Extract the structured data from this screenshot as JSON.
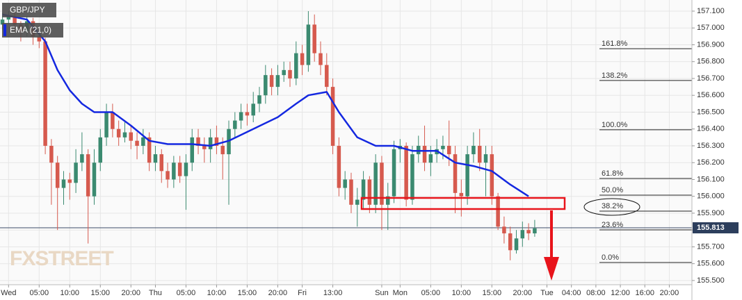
{
  "chart_data": {
    "type": "candlestick",
    "symbol": "GBP/JPY",
    "watermark": "FXSTREET",
    "grid": true,
    "xlim": [
      -1.4,
      111.7
    ],
    "ylim": [
      155.475,
      157.166
    ],
    "xticks": [
      {
        "value": 0,
        "label": "Wed"
      },
      {
        "value": 5,
        "label": "05:00"
      },
      {
        "value": 10,
        "label": "10:00"
      },
      {
        "value": 15,
        "label": "15:00"
      },
      {
        "value": 20,
        "label": "20:00"
      },
      {
        "value": 24,
        "label": "Thu"
      },
      {
        "value": 29,
        "label": "05:00"
      },
      {
        "value": 34,
        "label": "10:00"
      },
      {
        "value": 39,
        "label": "15:00"
      },
      {
        "value": 44,
        "label": "20:00"
      },
      {
        "value": 48,
        "label": "Fri"
      },
      {
        "value": 53,
        "label": "13:00"
      },
      {
        "value": 61,
        "label": "Sun"
      },
      {
        "value": 64,
        "label": "Mon"
      },
      {
        "value": 69,
        "label": "05:00"
      },
      {
        "value": 74,
        "label": "10:00"
      },
      {
        "value": 79,
        "label": "15:00"
      },
      {
        "value": 84,
        "label": "20:00"
      },
      {
        "value": 88,
        "label": "Tue"
      },
      {
        "value": 92,
        "label": "04:00"
      },
      {
        "value": 96,
        "label": "08:00"
      },
      {
        "value": 100,
        "label": "12:00"
      },
      {
        "value": 104,
        "label": "16:00"
      },
      {
        "value": 108,
        "label": "20:00"
      }
    ],
    "yticks": [
      {
        "value": 157.1,
        "label": "157.100"
      },
      {
        "value": 157.0,
        "label": "157.000"
      },
      {
        "value": 156.9,
        "label": "156.900"
      },
      {
        "value": 156.8,
        "label": "156.800"
      },
      {
        "value": 156.7,
        "label": "156.700"
      },
      {
        "value": 156.6,
        "label": "156.600"
      },
      {
        "value": 156.5,
        "label": "156.500"
      },
      {
        "value": 156.4,
        "label": "156.400"
      },
      {
        "value": 156.3,
        "label": "156.300"
      },
      {
        "value": 156.2,
        "label": "156.200"
      },
      {
        "value": 156.1,
        "label": "156.100"
      },
      {
        "value": 156.0,
        "label": "156.000"
      },
      {
        "value": 155.9,
        "label": "155.900"
      },
      {
        "value": 155.8,
        "label": "155.800"
      },
      {
        "value": 155.7,
        "label": "155.700"
      },
      {
        "value": 155.6,
        "label": "155.600"
      },
      {
        "value": 155.5,
        "label": "155.500"
      }
    ],
    "last_price": {
      "value": 155.813,
      "label": "155.813"
    },
    "candles": {
      "up_color": "#3b8a70",
      "down_color": "#d65a4e",
      "x": [
        -1,
        0,
        1,
        2,
        3,
        4,
        5,
        6,
        7,
        8,
        9,
        10,
        11,
        12,
        13,
        14,
        15,
        16,
        17,
        18,
        19,
        20,
        21,
        22,
        23,
        24,
        25,
        26,
        27,
        28,
        29,
        30,
        31,
        32,
        33,
        34,
        35,
        36,
        37,
        38,
        39,
        40,
        41,
        42,
        43,
        44,
        45,
        46,
        47,
        48,
        49,
        50,
        51,
        52,
        53,
        54,
        55,
        56,
        57,
        58,
        59,
        60,
        61,
        62,
        63,
        64,
        65,
        66,
        67,
        68,
        69,
        70,
        71,
        72,
        73,
        74,
        75,
        76,
        77,
        78,
        79,
        80,
        81,
        82,
        83,
        84,
        85,
        86
      ],
      "open": [
        157.02,
        157.05,
        157.07,
        157.02,
        156.98,
        157.04,
        156.95,
        156.92,
        156.3,
        156.2,
        156.05,
        156.1,
        156.08,
        156.2,
        156.25,
        156.0,
        156.2,
        156.35,
        156.5,
        156.4,
        156.35,
        156.38,
        156.33,
        156.3,
        156.35,
        156.2,
        156.25,
        156.15,
        156.1,
        156.2,
        156.12,
        156.2,
        156.35,
        156.3,
        156.28,
        156.35,
        156.3,
        156.25,
        156.4,
        156.45,
        156.5,
        156.48,
        156.55,
        156.6,
        156.72,
        156.65,
        156.72,
        156.75,
        156.7,
        156.85,
        156.78,
        157.02,
        156.85,
        156.78,
        156.65,
        156.3,
        156.05,
        156.1,
        155.95,
        155.98,
        156.1,
        155.95,
        156.2,
        155.95,
        156.0,
        156.28,
        156.3,
        155.98,
        156.25,
        156.3,
        156.2,
        156.25,
        156.28,
        156.3,
        156.25,
        156.02,
        156.0,
        156.25,
        156.3,
        156.2,
        156.25,
        156.0,
        155.82,
        155.78,
        155.68,
        155.75,
        155.8,
        155.78
      ],
      "high": [
        157.09,
        157.1,
        157.09,
        157.04,
        157.07,
        157.06,
        156.99,
        156.94,
        156.34,
        156.24,
        156.15,
        156.14,
        156.28,
        156.38,
        156.28,
        156.28,
        156.4,
        156.55,
        156.55,
        156.45,
        156.44,
        156.42,
        156.38,
        156.4,
        156.38,
        156.3,
        156.28,
        156.2,
        156.24,
        156.24,
        156.25,
        156.4,
        156.4,
        156.35,
        156.4,
        156.42,
        156.35,
        156.45,
        156.5,
        156.55,
        156.55,
        156.62,
        156.65,
        156.78,
        156.76,
        156.78,
        156.8,
        156.8,
        156.92,
        156.9,
        157.1,
        157.08,
        156.92,
        156.85,
        156.7,
        156.35,
        156.15,
        156.14,
        156.05,
        156.15,
        156.12,
        156.25,
        156.24,
        156.08,
        156.33,
        156.34,
        156.32,
        156.3,
        156.36,
        156.42,
        156.3,
        156.34,
        156.36,
        156.45,
        156.3,
        156.1,
        156.3,
        156.38,
        156.4,
        156.3,
        156.3,
        156.02,
        155.88,
        155.82,
        155.8,
        155.85,
        155.84,
        155.86
      ],
      "low": [
        156.99,
        157.02,
        156.98,
        156.92,
        156.95,
        156.9,
        156.88,
        156.25,
        155.95,
        155.8,
        155.95,
        155.98,
        156.02,
        156.15,
        155.72,
        155.95,
        156.15,
        156.3,
        156.35,
        156.3,
        156.32,
        156.28,
        156.22,
        156.25,
        156.15,
        156.15,
        156.08,
        156.05,
        156.05,
        156.08,
        155.92,
        156.15,
        156.25,
        156.2,
        156.2,
        156.25,
        156.1,
        155.95,
        156.35,
        156.4,
        156.42,
        156.44,
        156.5,
        156.55,
        156.6,
        156.6,
        156.68,
        156.65,
        156.66,
        156.72,
        156.74,
        156.8,
        156.72,
        156.6,
        156.25,
        156.0,
        155.98,
        155.9,
        155.82,
        155.92,
        155.9,
        155.9,
        155.8,
        155.8,
        155.96,
        156.2,
        155.94,
        155.95,
        156.2,
        156.15,
        156.12,
        156.2,
        156.22,
        156.18,
        155.9,
        155.88,
        155.95,
        156.2,
        156.15,
        156.0,
        155.95,
        155.8,
        155.72,
        155.62,
        155.66,
        155.7,
        155.74,
        155.76
      ],
      "close": [
        157.05,
        157.07,
        157.02,
        156.98,
        157.04,
        156.95,
        156.92,
        156.3,
        156.2,
        156.05,
        156.1,
        156.08,
        156.2,
        156.25,
        156.0,
        156.2,
        156.35,
        156.5,
        156.4,
        156.35,
        156.38,
        156.33,
        156.3,
        156.35,
        156.2,
        156.25,
        156.15,
        156.1,
        156.2,
        156.12,
        156.2,
        156.35,
        156.3,
        156.28,
        156.35,
        156.3,
        156.25,
        156.4,
        156.45,
        156.5,
        156.48,
        156.55,
        156.6,
        156.72,
        156.65,
        156.72,
        156.75,
        156.7,
        156.85,
        156.78,
        157.02,
        156.85,
        156.78,
        156.65,
        156.3,
        156.05,
        156.1,
        155.95,
        155.98,
        156.1,
        155.95,
        156.2,
        155.95,
        156.0,
        156.28,
        156.3,
        155.98,
        156.25,
        156.3,
        156.2,
        156.25,
        156.28,
        156.3,
        156.25,
        156.02,
        156.0,
        156.25,
        156.3,
        156.2,
        156.25,
        156.0,
        155.82,
        155.78,
        155.68,
        155.75,
        155.8,
        155.78,
        155.81
      ]
    },
    "series": [
      {
        "name": "EMA (21,0)",
        "color": "#1428e0",
        "x": [
          -1,
          3,
          6,
          8,
          10,
          12,
          14,
          17,
          20,
          23,
          26,
          30,
          33,
          36,
          40,
          44,
          47,
          49,
          52,
          54,
          57,
          60,
          63,
          66,
          70,
          73,
          76,
          79,
          82,
          85
        ],
        "values": [
          157.08,
          157.05,
          156.92,
          156.75,
          156.63,
          156.55,
          156.5,
          156.5,
          156.42,
          156.33,
          156.31,
          156.31,
          156.3,
          156.33,
          156.4,
          156.47,
          156.55,
          156.6,
          156.62,
          156.5,
          156.35,
          156.3,
          156.3,
          156.27,
          156.27,
          156.2,
          156.18,
          156.15,
          156.07,
          156.0
        ]
      }
    ],
    "fib_levels": [
      {
        "label": "161.8%",
        "value": 156.877
      },
      {
        "label": "138.2%",
        "value": 156.688
      },
      {
        "label": "100.0%",
        "value": 156.395
      },
      {
        "label": "61.8%",
        "value": 156.106
      },
      {
        "label": "50.0%",
        "value": 156.007
      },
      {
        "label": "38.2%",
        "value": 155.912
      },
      {
        "label": "23.6%",
        "value": 155.801
      },
      {
        "label": "0.0%",
        "value": 155.607
      }
    ]
  }
}
